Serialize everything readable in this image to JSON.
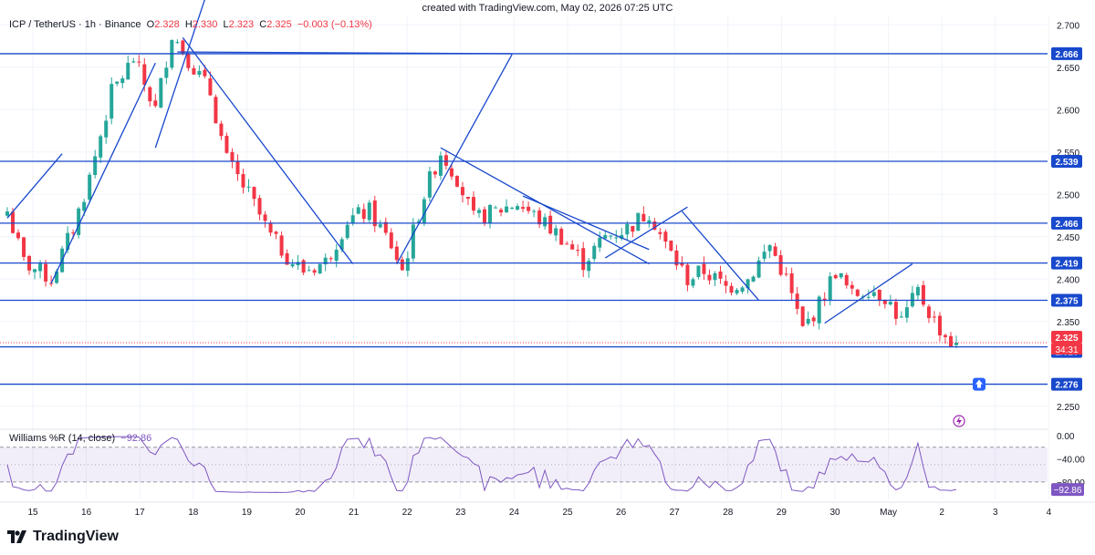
{
  "caption": "created with TradingView.com, May 02, 2026 07:25 UTC",
  "legend": {
    "symbol": "ICP / TetherUS · 1h · Binance",
    "open_key": "O",
    "open": "2.328",
    "high_key": "H",
    "high": "2.330",
    "low_key": "L",
    "low": "2.323",
    "close_key": "C",
    "close": "2.325",
    "change": "−0.003 (−0.13%)"
  },
  "indicator": {
    "label": "Williams %R (14, close)",
    "value": "−92.86"
  },
  "brand": "TradingView",
  "colors": {
    "up": "#26a69a",
    "down": "#f23645",
    "line": "#1848cc",
    "wr": "#7e57c2",
    "grid": "#f0f3fa"
  },
  "chart_data": [
    {
      "type": "candlestick",
      "title": "ICP / TetherUS · 1h · Binance",
      "x_tick_labels": [
        "15",
        "16",
        "17",
        "18",
        "19",
        "20",
        "21",
        "22",
        "23",
        "24",
        "25",
        "26",
        "27",
        "28",
        "29",
        "30",
        "May",
        "2",
        "3",
        "4"
      ],
      "y_ticks": [
        "2.700",
        "2.650",
        "2.600",
        "2.550",
        "2.500",
        "2.450",
        "2.400",
        "2.350",
        "2.250"
      ],
      "ylim": [
        2.225,
        2.71
      ],
      "close_path": [
        [
          0,
          2.48
        ],
        [
          3,
          2.42
        ],
        [
          8,
          2.4
        ],
        [
          12,
          2.46
        ],
        [
          15,
          2.52
        ],
        [
          19,
          2.62
        ],
        [
          23,
          2.66
        ],
        [
          27,
          2.6
        ],
        [
          30,
          2.69
        ],
        [
          33,
          2.66
        ],
        [
          37,
          2.62
        ],
        [
          40,
          2.54
        ],
        [
          44,
          2.5
        ],
        [
          48,
          2.45
        ],
        [
          52,
          2.42
        ],
        [
          54,
          2.41
        ],
        [
          58,
          2.42
        ],
        [
          62,
          2.47
        ],
        [
          66,
          2.48
        ],
        [
          70,
          2.44
        ],
        [
          72,
          2.41
        ],
        [
          76,
          2.5
        ],
        [
          79,
          2.55
        ],
        [
          82,
          2.52
        ],
        [
          85,
          2.47
        ],
        [
          89,
          2.48
        ],
        [
          93,
          2.49
        ],
        [
          97,
          2.47
        ],
        [
          101,
          2.45
        ],
        [
          105,
          2.42
        ],
        [
          109,
          2.45
        ],
        [
          113,
          2.46
        ],
        [
          117,
          2.48
        ],
        [
          120,
          2.44
        ],
        [
          124,
          2.4
        ],
        [
          127,
          2.41
        ],
        [
          131,
          2.39
        ],
        [
          135,
          2.4
        ],
        [
          139,
          2.44
        ],
        [
          142,
          2.4
        ],
        [
          145,
          2.34
        ],
        [
          148,
          2.37
        ],
        [
          151,
          2.41
        ],
        [
          154,
          2.38
        ],
        [
          157,
          2.39
        ],
        [
          160,
          2.38
        ],
        [
          163,
          2.35
        ],
        [
          166,
          2.385
        ],
        [
          169,
          2.35
        ],
        [
          172,
          2.325
        ]
      ],
      "price_labels": [
        {
          "value": 2.666,
          "text": "2.666",
          "color": "#1848cc"
        },
        {
          "value": 2.539,
          "text": "2.539",
          "color": "#1848cc"
        },
        {
          "value": 2.466,
          "text": "2.466",
          "color": "#1848cc"
        },
        {
          "value": 2.419,
          "text": "2.419",
          "color": "#1848cc"
        },
        {
          "value": 2.375,
          "text": "2.375",
          "color": "#1848cc"
        },
        {
          "value": 2.325,
          "text": "2.325",
          "color": "#f23645"
        },
        {
          "value": 2.32,
          "text": "2.320",
          "color": "#1848cc"
        },
        {
          "value": 2.276,
          "text": "2.276",
          "color": "#1848cc"
        }
      ],
      "countdown": "34:31",
      "horizontal_levels": [
        2.666,
        2.539,
        2.466,
        2.419,
        2.375,
        2.32,
        2.276
      ]
    },
    {
      "type": "line",
      "title": "Williams %R (14, close)",
      "y_ticks": [
        "0.00",
        "−40.00",
        "−80.00"
      ],
      "ylim": [
        -110,
        8
      ],
      "band": [
        -20,
        -80
      ],
      "last_value": "−92.86"
    }
  ]
}
